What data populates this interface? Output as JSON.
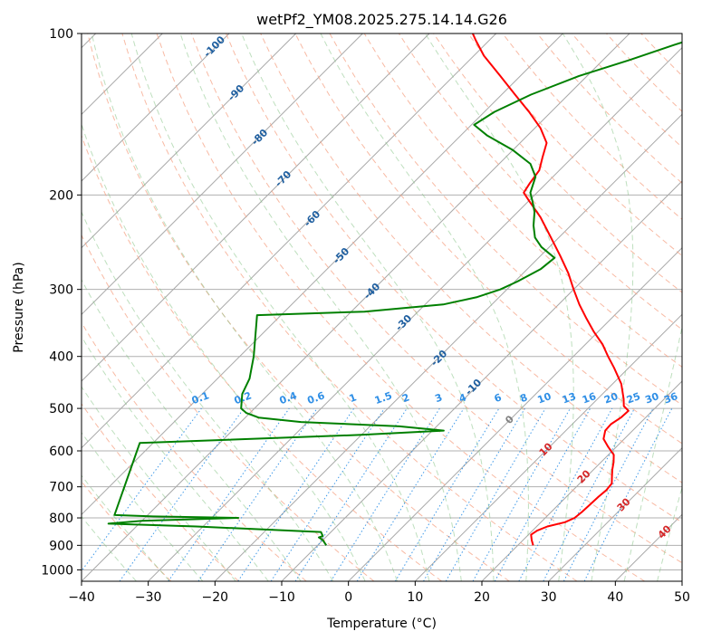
{
  "chart_data": {
    "type": "line",
    "subtype": "skew-t log-p diagram",
    "title": "wetPf2_YM08.2025.275.14.14.G26",
    "xlabel": "Temperature (°C)",
    "ylabel": "Pressure (hPa)",
    "xlim": [
      -40,
      50
    ],
    "ylim": [
      1050,
      100
    ],
    "y_scale": "log",
    "x_ticks": [
      -40,
      -30,
      -20,
      -10,
      0,
      10,
      20,
      30,
      40,
      50
    ],
    "x_tick_labels": [
      "−40",
      "−30",
      "−20",
      "−10",
      "0",
      "10",
      "20",
      "30",
      "40",
      "50"
    ],
    "y_ticks": [
      100,
      200,
      300,
      400,
      500,
      600,
      700,
      800,
      900,
      1000
    ],
    "y_tick_labels": [
      "100",
      "200",
      "300",
      "400",
      "500",
      "600",
      "700",
      "800",
      "900",
      "1000"
    ],
    "grid": true,
    "background_lines": {
      "isotherm_spacing_c": 10,
      "dry_adiabat_potential_temps_c": [
        -30,
        -20,
        -10,
        0,
        10,
        20,
        30,
        40,
        50,
        60,
        70,
        80,
        90,
        100,
        110,
        120,
        130,
        140,
        150,
        160,
        170,
        180
      ],
      "moist_adiabat_labels": [
        "-100",
        "-90",
        "-80",
        "-70",
        "-60",
        "-50",
        "-40",
        "-30",
        "-20",
        "-10",
        "0",
        "10",
        "20",
        "30",
        "40"
      ],
      "mixing_ratio_labels": [
        "0.1",
        "0.2",
        "0.4",
        "0.6",
        "1",
        "1.5",
        "2",
        "3",
        "4",
        "6",
        "8",
        "10",
        "13",
        "16",
        "20",
        "25",
        "30",
        "36"
      ],
      "mixing_ratio_values_gkg": [
        0.1,
        0.2,
        0.4,
        0.6,
        1,
        1.5,
        2,
        3,
        4,
        6,
        8,
        10,
        13,
        16,
        20,
        25,
        30,
        36
      ]
    },
    "series": [
      {
        "role": "temperature",
        "color": "#ff0000",
        "points": [
          [
            900,
            22.3
          ],
          [
            880,
            21.3
          ],
          [
            860,
            20.4
          ],
          [
            845,
            20.7
          ],
          [
            830,
            21.6
          ],
          [
            815,
            23.6
          ],
          [
            800,
            24.4
          ],
          [
            780,
            24.6
          ],
          [
            760,
            24.7
          ],
          [
            730,
            24.8
          ],
          [
            710,
            25.0
          ],
          [
            690,
            24.8
          ],
          [
            670,
            23.8
          ],
          [
            650,
            22.8
          ],
          [
            630,
            21.9
          ],
          [
            610,
            20.8
          ],
          [
            590,
            18.8
          ],
          [
            570,
            16.9
          ],
          [
            550,
            15.9
          ],
          [
            535,
            15.8
          ],
          [
            520,
            16.3
          ],
          [
            505,
            16.4
          ],
          [
            495,
            15.0
          ],
          [
            480,
            13.9
          ],
          [
            450,
            11.3
          ],
          [
            420,
            7.8
          ],
          [
            400,
            5.2
          ],
          [
            380,
            2.6
          ],
          [
            360,
            -0.6
          ],
          [
            340,
            -3.7
          ],
          [
            320,
            -6.9
          ],
          [
            300,
            -10.0
          ],
          [
            280,
            -13.2
          ],
          [
            260,
            -17.0
          ],
          [
            240,
            -21.2
          ],
          [
            220,
            -25.8
          ],
          [
            205,
            -30.0
          ],
          [
            198,
            -32.0
          ],
          [
            190,
            -32.5
          ],
          [
            180,
            -33.0
          ],
          [
            170,
            -34.5
          ],
          [
            160,
            -36.0
          ],
          [
            150,
            -39.2
          ],
          [
            140,
            -43.3
          ],
          [
            130,
            -48.0
          ],
          [
            120,
            -53.0
          ],
          [
            110,
            -58.5
          ],
          [
            103,
            -62.0
          ],
          [
            100,
            -63.5
          ]
        ]
      },
      {
        "role": "dewpoint",
        "color": "#008000",
        "points": [
          [
            900,
            -8.7
          ],
          [
            880,
            -10.0
          ],
          [
            870,
            -11.0
          ],
          [
            865,
            -10.6
          ],
          [
            850,
            -11.5
          ],
          [
            830,
            -31.0
          ],
          [
            820,
            -44.6
          ],
          [
            810,
            -40.0
          ],
          [
            800,
            -26.0
          ],
          [
            795,
            -39.0
          ],
          [
            790,
            -45.0
          ],
          [
            580,
            -52.0
          ],
          [
            560,
            -20.0
          ],
          [
            550,
            -8.3
          ],
          [
            540,
            -15.6
          ],
          [
            530,
            -31.0
          ],
          [
            520,
            -38.0
          ],
          [
            510,
            -40.5
          ],
          [
            500,
            -42.0
          ],
          [
            470,
            -44.0
          ],
          [
            440,
            -45.2
          ],
          [
            400,
            -47.9
          ],
          [
            335,
            -53.6
          ],
          [
            330,
            -38.0
          ],
          [
            320,
            -27.3
          ],
          [
            310,
            -23.3
          ],
          [
            300,
            -21.0
          ],
          [
            290,
            -19.6
          ],
          [
            275,
            -18.0
          ],
          [
            262,
            -17.6
          ],
          [
            250,
            -21.2
          ],
          [
            240,
            -23.6
          ],
          [
            228,
            -25.6
          ],
          [
            215,
            -27.5
          ],
          [
            205,
            -29.5
          ],
          [
            198,
            -31.0
          ],
          [
            185,
            -32.6
          ],
          [
            175,
            -35.3
          ],
          [
            165,
            -40.0
          ],
          [
            155,
            -46.0
          ],
          [
            148,
            -49.6
          ],
          [
            140,
            -48.5
          ],
          [
            130,
            -45.6
          ],
          [
            120,
            -41.2
          ],
          [
            112,
            -36.0
          ],
          [
            105,
            -31.6
          ],
          [
            100,
            -28.0
          ]
        ]
      }
    ]
  }
}
